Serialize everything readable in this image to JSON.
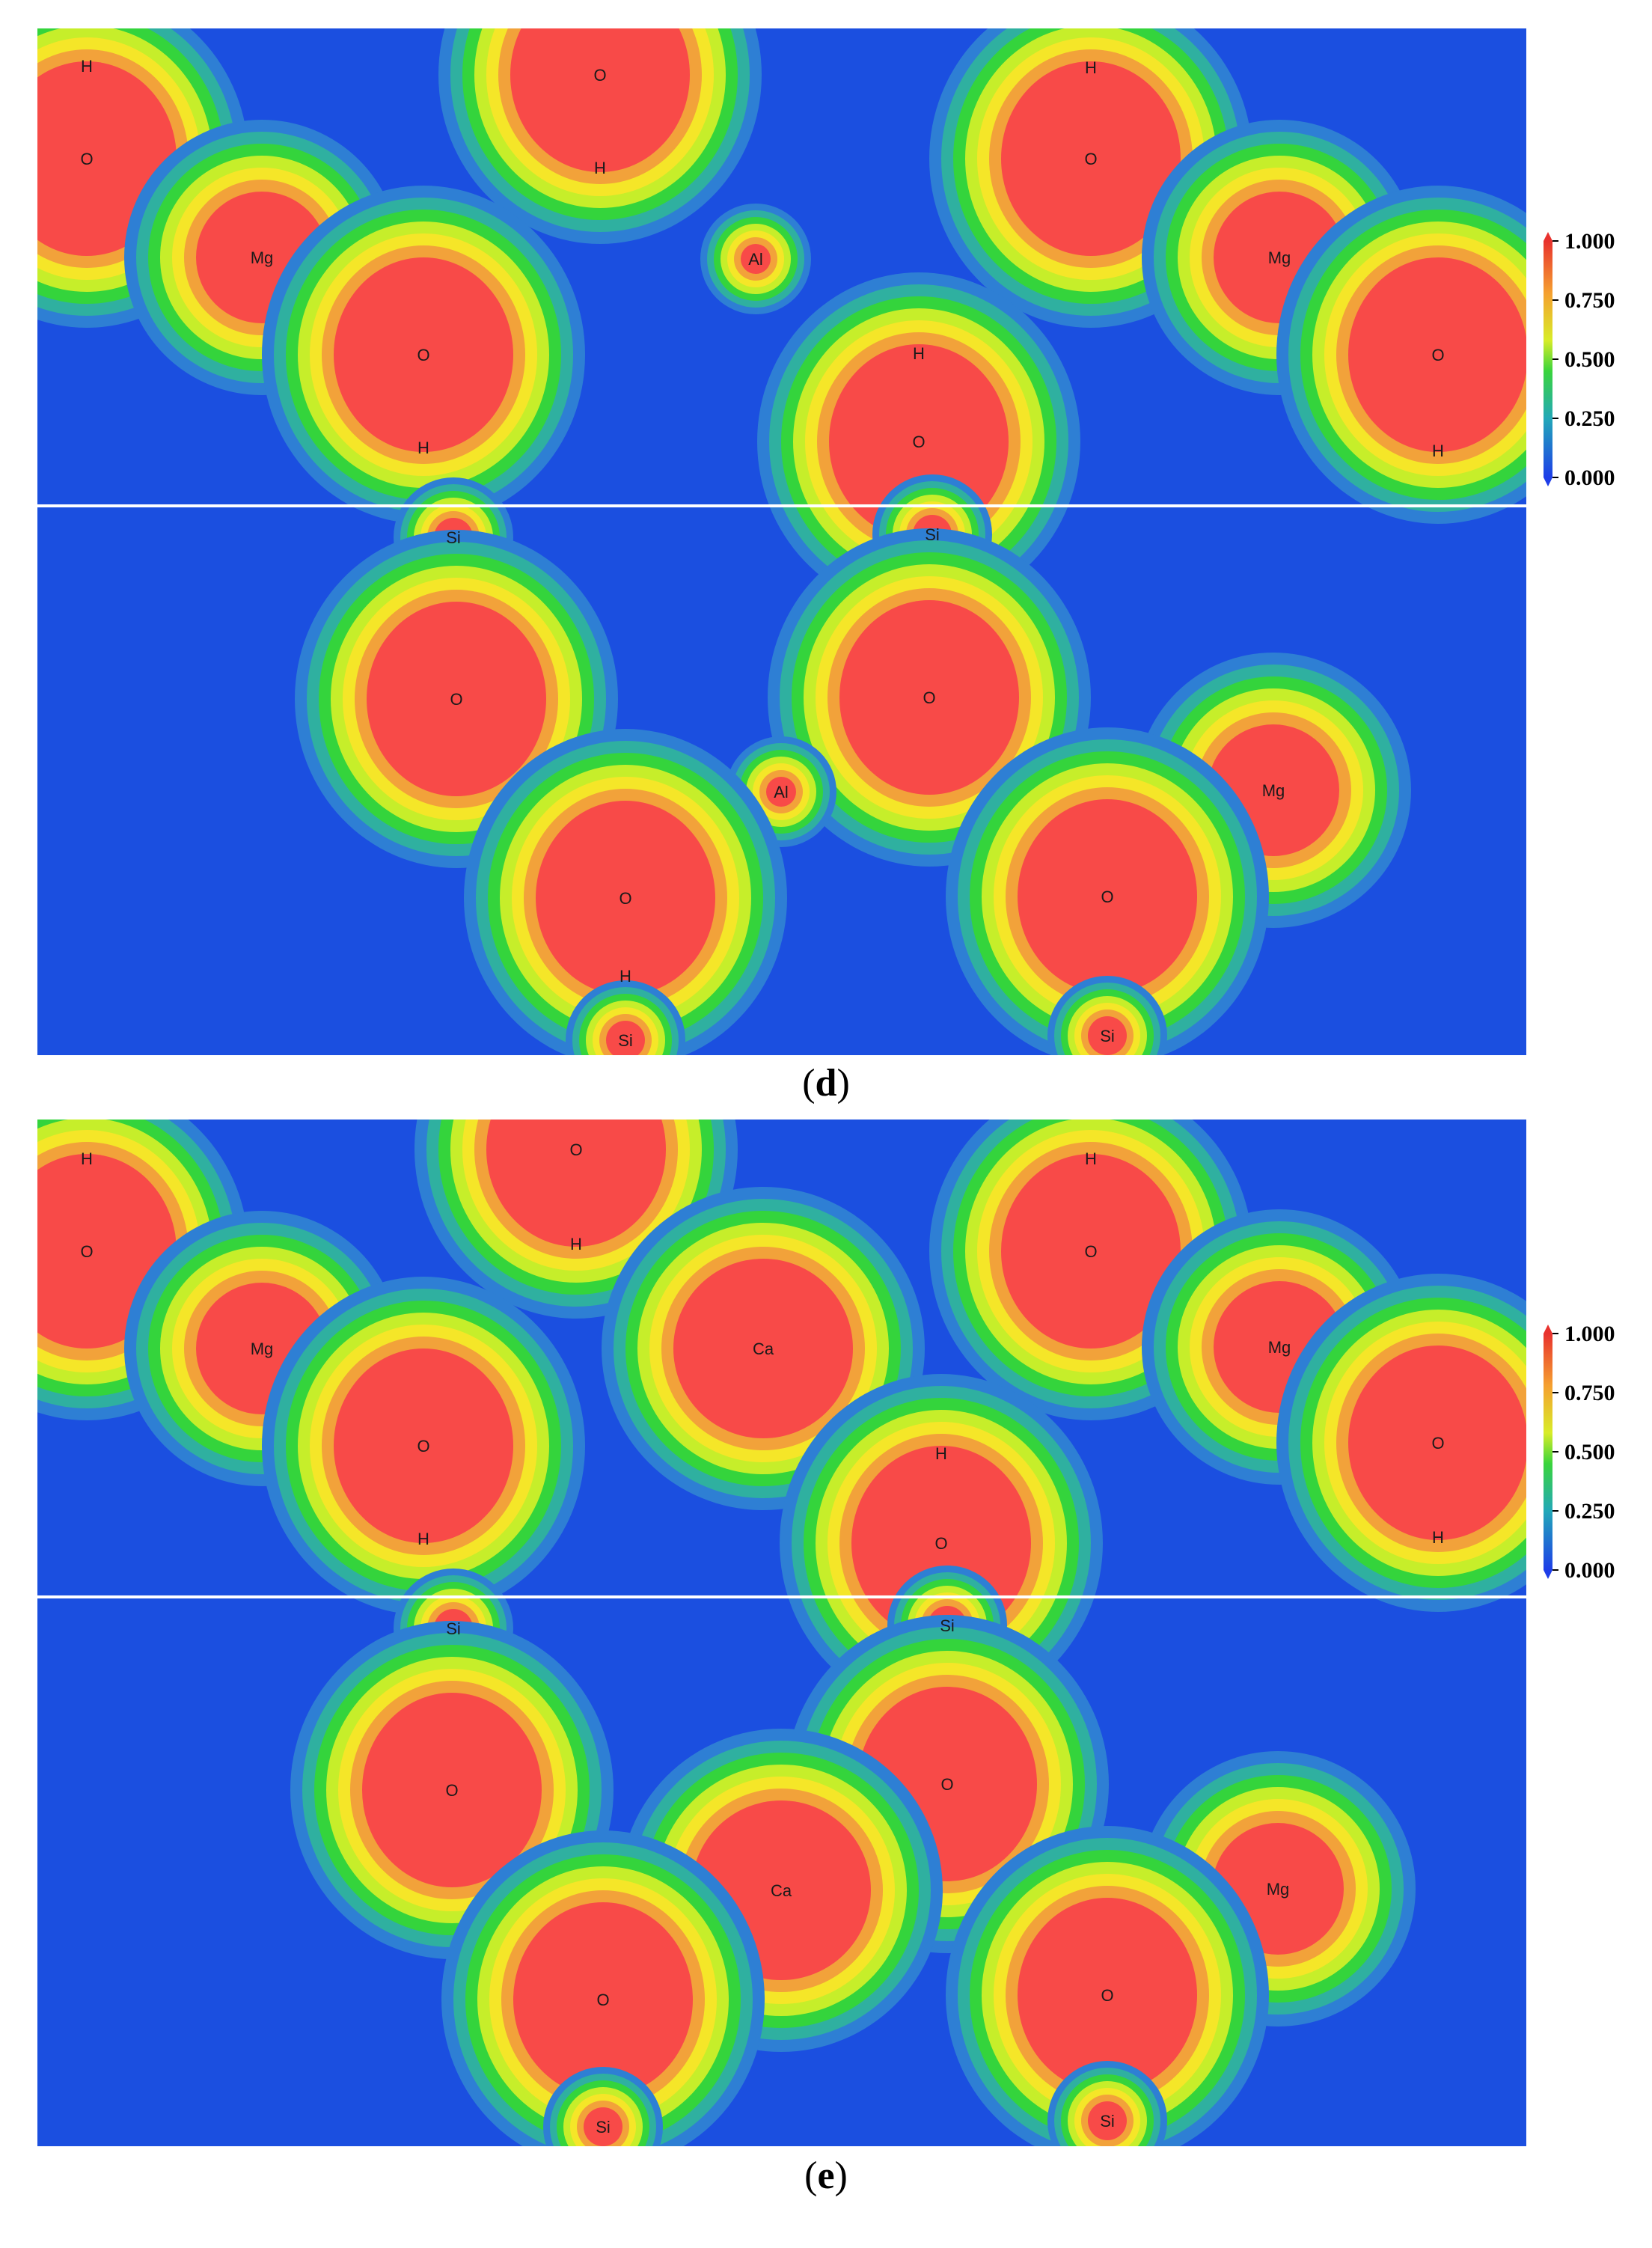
{
  "figure": {
    "panels": [
      {
        "id": "d",
        "caption_letter": "d",
        "colorbar_ticks": [
          "1.000",
          "0.750",
          "0.500",
          "0.250",
          "0.000"
        ],
        "atoms_top": [
          {
            "label": "H",
            "el": "H"
          },
          {
            "label": "O",
            "el": "O"
          },
          {
            "label": "H",
            "el": "H"
          },
          {
            "label": "O",
            "el": "O"
          },
          {
            "label": "H",
            "el": "H"
          },
          {
            "label": "O",
            "el": "O"
          },
          {
            "label": "Mg",
            "el": "Mg"
          },
          {
            "label": "Al",
            "el": "Al"
          },
          {
            "label": "Mg",
            "el": "Mg"
          },
          {
            "label": "O",
            "el": "O"
          },
          {
            "label": "H",
            "el": "H"
          },
          {
            "label": "O",
            "el": "O"
          },
          {
            "label": "H",
            "el": "H"
          },
          {
            "label": "O",
            "el": "O"
          },
          {
            "label": "H",
            "el": "H"
          }
        ],
        "atoms_bottom": [
          {
            "label": "Si",
            "el": "Si"
          },
          {
            "label": "Si",
            "el": "Si"
          },
          {
            "label": "O",
            "el": "O"
          },
          {
            "label": "O",
            "el": "O"
          },
          {
            "label": "Al",
            "el": "Al"
          },
          {
            "label": "Mg",
            "el": "Mg"
          },
          {
            "label": "O",
            "el": "O"
          },
          {
            "label": "H",
            "el": "H"
          },
          {
            "label": "O",
            "el": "O"
          },
          {
            "label": "Si",
            "el": "Si"
          },
          {
            "label": "Si",
            "el": "Si"
          }
        ]
      },
      {
        "id": "e",
        "caption_letter": "e",
        "colorbar_ticks": [
          "1.000",
          "0.750",
          "0.500",
          "0.250",
          "0.000"
        ],
        "atoms_top": [
          {
            "label": "H",
            "el": "H"
          },
          {
            "label": "O",
            "el": "O"
          },
          {
            "label": "H",
            "el": "H"
          },
          {
            "label": "O",
            "el": "O"
          },
          {
            "label": "H",
            "el": "H"
          },
          {
            "label": "O",
            "el": "O"
          },
          {
            "label": "Mg",
            "el": "Mg"
          },
          {
            "label": "Ca",
            "el": "Ca"
          },
          {
            "label": "Mg",
            "el": "Mg"
          },
          {
            "label": "O",
            "el": "O"
          },
          {
            "label": "H",
            "el": "H"
          },
          {
            "label": "O",
            "el": "O"
          },
          {
            "label": "H",
            "el": "H"
          },
          {
            "label": "O",
            "el": "O"
          },
          {
            "label": "H",
            "el": "H"
          }
        ],
        "atoms_bottom": [
          {
            "label": "Si",
            "el": "Si"
          },
          {
            "label": "Si",
            "el": "Si"
          },
          {
            "label": "O",
            "el": "O"
          },
          {
            "label": "O",
            "el": "O"
          },
          {
            "label": "Ca",
            "el": "Ca"
          },
          {
            "label": "Mg",
            "el": "Mg"
          },
          {
            "label": "O",
            "el": "O"
          },
          {
            "label": "O",
            "el": "O"
          },
          {
            "label": "Si",
            "el": "Si"
          },
          {
            "label": "Si",
            "el": "Si"
          }
        ]
      }
    ],
    "colors": {
      "background": "#1b4fe0",
      "plateau": "#2e7fd4",
      "level_1": "#2fb0a0",
      "level_2": "#34d43c",
      "level_3": "#c6ee2a",
      "level_4": "#f5e628",
      "level_5": "#f2a23a",
      "core": "#f84a48"
    }
  }
}
